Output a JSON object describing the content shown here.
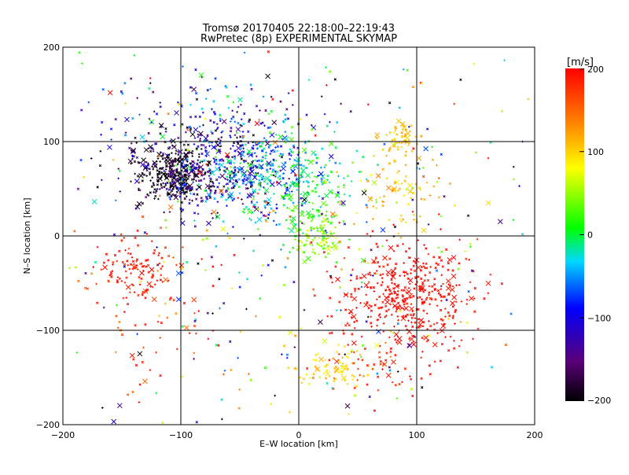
{
  "title_line1": "Tromsø 20170405 22:18:00–22:19:43",
  "title_line2": "RwPretec (8p) EXPERIMENTAL SKYMAP",
  "chart_data": {
    "type": "scatter",
    "xlabel": "E–W location [km]",
    "ylabel": "N–S location [km]",
    "xlim": [
      -200,
      200
    ],
    "ylim": [
      -200,
      200
    ],
    "xticks": [
      -200,
      -100,
      0,
      100,
      200
    ],
    "yticks": [
      -200,
      -100,
      0,
      100,
      200
    ],
    "grid": true,
    "markers": [
      "cross",
      "x"
    ],
    "colorbar": {
      "label": "[m/s]",
      "range": [
        -200,
        200
      ],
      "ticks": [
        200,
        100,
        0,
        -100,
        -200
      ],
      "colormap": "rainbow: black → purple → blue → cyan → green → yellow → red"
    },
    "clusters": [
      {
        "cx": -108,
        "cy": 65,
        "sx": 14,
        "sy": 12,
        "n": 260,
        "v": -200,
        "vs": 15
      },
      {
        "cx": -80,
        "cy": 70,
        "sx": 30,
        "sy": 25,
        "n": 320,
        "v": -150,
        "vs": 40
      },
      {
        "cx": -40,
        "cy": 70,
        "sx": 30,
        "sy": 25,
        "n": 300,
        "v": -60,
        "vs": 40
      },
      {
        "cx": -10,
        "cy": 65,
        "sx": 25,
        "sy": 25,
        "n": 140,
        "v": -10,
        "vs": 30
      },
      {
        "cx": -80,
        "cy": 120,
        "sx": 40,
        "sy": 25,
        "n": 140,
        "v": -120,
        "vs": 60
      },
      {
        "cx": 15,
        "cy": 20,
        "sx": 15,
        "sy": 25,
        "n": 90,
        "v": 20,
        "vs": 20
      },
      {
        "cx": 18,
        "cy": -5,
        "sx": 10,
        "sy": 10,
        "n": 70,
        "v": 50,
        "vs": 15
      },
      {
        "cx": 90,
        "cy": -65,
        "sx": 30,
        "sy": 30,
        "n": 420,
        "v": 195,
        "vs": 8
      },
      {
        "cx": 30,
        "cy": -140,
        "sx": 15,
        "sy": 10,
        "n": 70,
        "v": 100,
        "vs": 15
      },
      {
        "cx": 70,
        "cy": -140,
        "sx": 30,
        "sy": 15,
        "n": 50,
        "v": 185,
        "vs": 10
      },
      {
        "cx": 90,
        "cy": 105,
        "sx": 8,
        "sy": 8,
        "n": 50,
        "v": 110,
        "vs": 10
      },
      {
        "cx": 80,
        "cy": 50,
        "sx": 18,
        "sy": 25,
        "n": 70,
        "v": 110,
        "vs": 15
      },
      {
        "cx": -140,
        "cy": -35,
        "sx": 15,
        "sy": 18,
        "n": 110,
        "v": 190,
        "vs": 10
      },
      {
        "cx": -120,
        "cy": -80,
        "sx": 30,
        "sy": 50,
        "n": 60,
        "v": 170,
        "vs": 25
      },
      {
        "cx": 0,
        "cy": 0,
        "sx": 110,
        "sy": 110,
        "n": 450,
        "v": 0,
        "vs": 150
      }
    ]
  }
}
